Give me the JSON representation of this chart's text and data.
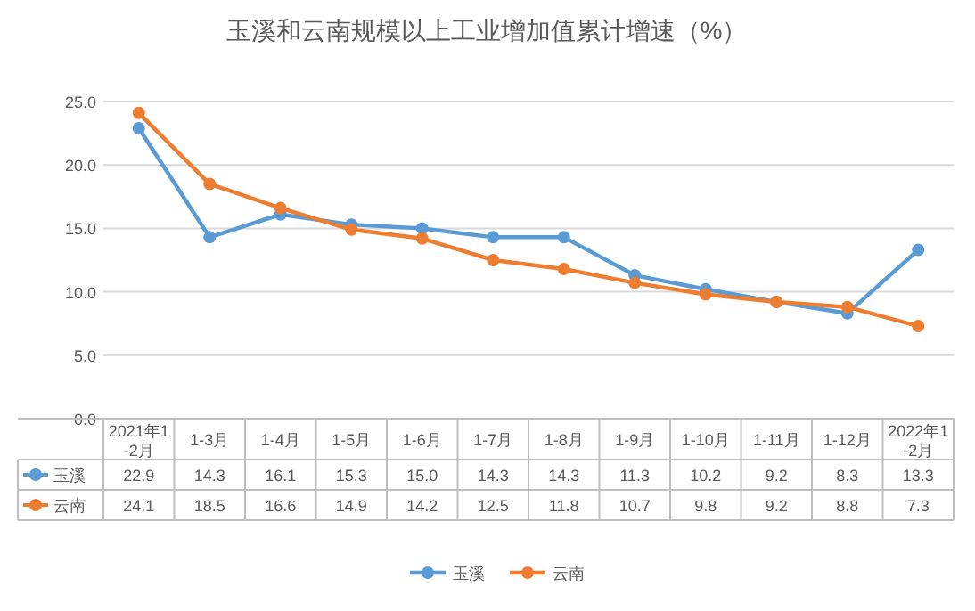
{
  "chart_data": {
    "type": "line",
    "title": "玉溪和云南规模以上工业增加值累计增速（%）",
    "categories": [
      "2021年1-2月",
      "1-3月",
      "1-4月",
      "1-5月",
      "1-6月",
      "1-7月",
      "1-8月",
      "1-9月",
      "1-10月",
      "1-11月",
      "1-12月",
      "2022年1-2月"
    ],
    "series": [
      {
        "name": "玉溪",
        "color": "#5b9bd5",
        "values": [
          22.9,
          14.3,
          16.1,
          15.3,
          15.0,
          14.3,
          14.3,
          11.3,
          10.2,
          9.2,
          8.3,
          13.3
        ],
        "value_labels": [
          "22.9",
          "14.3",
          "16.1",
          "15.3",
          "15.0",
          "14.3",
          "14.3",
          "11.3",
          "10.2",
          "9.2",
          "8.3",
          "13.3"
        ]
      },
      {
        "name": "云南",
        "color": "#ed7d31",
        "values": [
          24.1,
          18.5,
          16.6,
          14.9,
          14.2,
          12.5,
          11.8,
          10.7,
          9.8,
          9.2,
          8.8,
          7.3
        ],
        "value_labels": [
          "24.1",
          "18.5",
          "16.6",
          "14.9",
          "14.2",
          "12.5",
          "11.8",
          "10.7",
          "9.8",
          "9.2",
          "8.8",
          "7.3"
        ]
      }
    ],
    "ylim": [
      0,
      25
    ],
    "yticks": [
      {
        "value": 0,
        "label": "0.0"
      },
      {
        "value": 5,
        "label": "5.0"
      },
      {
        "value": 10,
        "label": "10.0"
      },
      {
        "value": 15,
        "label": "15.0"
      },
      {
        "value": 20,
        "label": "20.0"
      },
      {
        "value": 25,
        "label": "25.0"
      }
    ],
    "grid": "y",
    "legend": "bottom",
    "marker": "circle",
    "line_style": "solid"
  }
}
